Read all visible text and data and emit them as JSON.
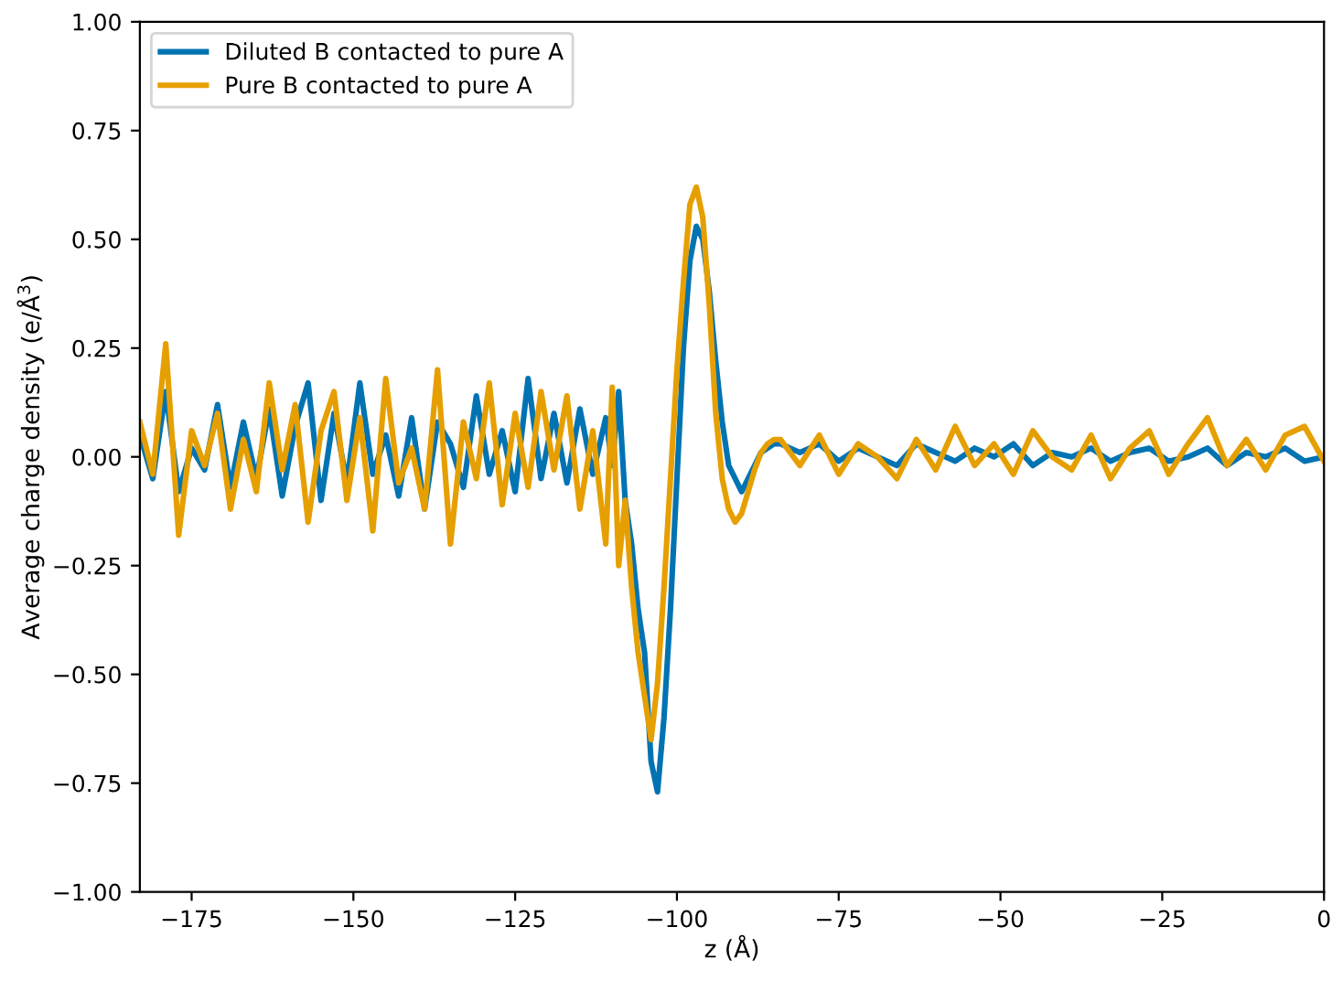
{
  "chart_data": {
    "type": "line",
    "xlabel": "z (Å)",
    "ylabel": "Average charge density (e/Å$^{3}$)",
    "xlim": [
      -183,
      0
    ],
    "ylim": [
      -1,
      1
    ],
    "xticks": [
      {
        "value": -175,
        "label": "−175"
      },
      {
        "value": -150,
        "label": "−150"
      },
      {
        "value": -125,
        "label": "−125"
      },
      {
        "value": -100,
        "label": "−100"
      },
      {
        "value": -75,
        "label": "−75"
      },
      {
        "value": -50,
        "label": "−50"
      },
      {
        "value": -25,
        "label": "−25"
      },
      0
    ],
    "yticks": [
      {
        "value": -1,
        "label": "−1.00"
      },
      {
        "value": -0.75,
        "label": "−0.75"
      },
      {
        "value": -0.5,
        "label": "−0.50"
      },
      {
        "value": -0.25,
        "label": "−0.25"
      },
      {
        "value": 0,
        "label": "0.00"
      },
      {
        "value": 0.25,
        "label": "0.25"
      },
      {
        "value": 0.5,
        "label": "0.50"
      },
      {
        "value": 0.75,
        "label": "0.75"
      },
      {
        "value": 1,
        "label": "1.00"
      }
    ],
    "legend": "top left",
    "grid": false,
    "marker": "none",
    "line_style": "solid",
    "series": [
      {
        "name": "Diluted B contacted to pure A",
        "color": "#0173b2",
        "x": [
          -183,
          -181,
          -179,
          -177,
          -175,
          -173,
          -171,
          -169,
          -167,
          -165,
          -163,
          -161,
          -159,
          -157,
          -155,
          -153,
          -151,
          -149,
          -147,
          -145,
          -143,
          -141,
          -139,
          -137,
          -135,
          -133,
          -131,
          -129,
          -127,
          -125,
          -123,
          -121,
          -119,
          -117,
          -115,
          -113,
          -111,
          -110,
          -109,
          -108,
          -107,
          -106,
          -105,
          -104,
          -103,
          -102,
          -101,
          -100,
          -99,
          -98,
          -97,
          -96,
          -95,
          -94,
          -93,
          -92,
          -91,
          -90,
          -89,
          -88,
          -87,
          -86,
          -85,
          -84,
          -81,
          -78,
          -75,
          -72,
          -69,
          -66,
          -63,
          -60,
          -57,
          -54,
          -51,
          -48,
          -45,
          -42,
          -39,
          -36,
          -33,
          -30,
          -27,
          -24,
          -21,
          -18,
          -15,
          -12,
          -9,
          -6,
          -3,
          0
        ],
        "values": [
          0.05,
          -0.05,
          0.15,
          -0.08,
          0.02,
          -0.03,
          0.12,
          -0.07,
          0.08,
          -0.05,
          0.11,
          -0.09,
          0.07,
          0.17,
          -0.1,
          0.1,
          -0.06,
          0.17,
          -0.04,
          0.05,
          -0.09,
          0.09,
          -0.12,
          0.08,
          0.03,
          -0.07,
          0.14,
          -0.04,
          0.06,
          -0.08,
          0.18,
          -0.05,
          0.1,
          -0.06,
          0.11,
          -0.04,
          0.09,
          -0.02,
          0.15,
          -0.1,
          -0.2,
          -0.35,
          -0.45,
          -0.7,
          -0.77,
          -0.6,
          -0.35,
          -0.05,
          0.25,
          0.45,
          0.53,
          0.5,
          0.38,
          0.22,
          0.08,
          -0.02,
          -0.05,
          -0.08,
          -0.05,
          -0.02,
          0.01,
          0.02,
          0.03,
          0.03,
          0.01,
          0.03,
          -0.01,
          0.02,
          0.0,
          -0.02,
          0.03,
          0.01,
          -0.01,
          0.02,
          0.0,
          0.03,
          -0.02,
          0.01,
          0.0,
          0.02,
          -0.01,
          0.01,
          0.02,
          -0.01,
          0.0,
          0.02,
          -0.02,
          0.01,
          0.0,
          0.02,
          -0.01,
          0.0
        ]
      },
      {
        "name": "Pure B contacted to pure A",
        "color": "#e69f00",
        "x": [
          -183,
          -181,
          -179,
          -177,
          -175,
          -173,
          -171,
          -169,
          -167,
          -165,
          -163,
          -161,
          -159,
          -157,
          -155,
          -153,
          -151,
          -149,
          -147,
          -145,
          -143,
          -141,
          -139,
          -137,
          -135,
          -133,
          -131,
          -129,
          -127,
          -125,
          -123,
          -121,
          -119,
          -117,
          -115,
          -113,
          -111,
          -110,
          -109,
          -108,
          -107,
          -106,
          -105,
          -104,
          -103,
          -102,
          -101,
          -100,
          -99,
          -98,
          -97,
          -96,
          -95,
          -94,
          -93,
          -92,
          -91,
          -90,
          -89,
          -88,
          -87,
          -86,
          -85,
          -84,
          -81,
          -78,
          -75,
          -72,
          -69,
          -66,
          -63,
          -60,
          -57,
          -54,
          -51,
          -48,
          -45,
          -42,
          -39,
          -36,
          -33,
          -30,
          -27,
          -24,
          -21,
          -18,
          -15,
          -12,
          -9,
          -6,
          -3,
          0
        ],
        "values": [
          0.08,
          -0.04,
          0.26,
          -0.18,
          0.06,
          -0.02,
          0.1,
          -0.12,
          0.04,
          -0.08,
          0.17,
          -0.03,
          0.12,
          -0.15,
          0.06,
          0.15,
          -0.1,
          0.09,
          -0.17,
          0.18,
          -0.06,
          0.02,
          -0.12,
          0.2,
          -0.2,
          0.08,
          -0.05,
          0.17,
          -0.11,
          0.1,
          -0.07,
          0.15,
          -0.03,
          0.14,
          -0.12,
          0.06,
          -0.2,
          0.16,
          -0.25,
          -0.1,
          -0.3,
          -0.45,
          -0.55,
          -0.65,
          -0.52,
          -0.3,
          -0.05,
          0.2,
          0.4,
          0.58,
          0.62,
          0.55,
          0.35,
          0.1,
          -0.05,
          -0.12,
          -0.15,
          -0.13,
          -0.08,
          -0.03,
          0.01,
          0.03,
          0.04,
          0.04,
          -0.02,
          0.05,
          -0.04,
          0.03,
          0.0,
          -0.05,
          0.04,
          -0.03,
          0.07,
          -0.02,
          0.03,
          -0.04,
          0.06,
          0.0,
          -0.03,
          0.05,
          -0.05,
          0.02,
          0.06,
          -0.04,
          0.03,
          0.09,
          -0.02,
          0.04,
          -0.03,
          0.05,
          0.07,
          -0.01
        ]
      }
    ]
  }
}
